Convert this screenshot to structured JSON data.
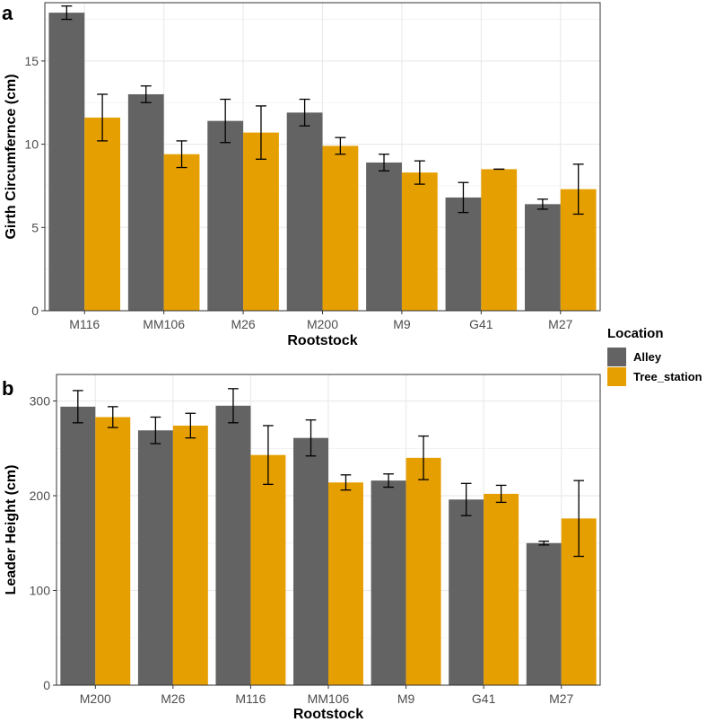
{
  "colors": {
    "alley": "#636363",
    "tree_station": "#E69F00",
    "grid": "#ebebeb",
    "border": "#333333",
    "error_bar": "#000000"
  },
  "legend": {
    "title": "Location",
    "entries": [
      "Alley",
      "Tree_station"
    ]
  },
  "chart_data": [
    {
      "type": "bar",
      "panel": "a",
      "xlabel": "Rootstock",
      "ylabel": "Girth Circumfernce (cm)",
      "ylim": [
        0,
        18.5
      ],
      "yticks": [
        0,
        5,
        10,
        15
      ],
      "categories": [
        "M116",
        "MM106",
        "M26",
        "M200",
        "M9",
        "G41",
        "M27"
      ],
      "series": [
        {
          "name": "Alley",
          "values": [
            17.9,
            13.0,
            11.4,
            11.9,
            8.9,
            6.8,
            6.4
          ],
          "errors": [
            0.4,
            0.5,
            1.3,
            0.8,
            0.5,
            0.9,
            0.3
          ]
        },
        {
          "name": "Tree_station",
          "values": [
            11.6,
            9.4,
            10.7,
            9.9,
            8.3,
            8.5,
            7.3
          ],
          "errors": [
            1.4,
            0.8,
            1.6,
            0.5,
            0.7,
            0.0,
            1.5
          ]
        }
      ]
    },
    {
      "type": "bar",
      "panel": "b",
      "xlabel": "Rootstock",
      "ylabel": "Leader Height (cm)",
      "ylim": [
        0,
        328
      ],
      "yticks": [
        0,
        100,
        200,
        300
      ],
      "categories": [
        "M200",
        "M26",
        "M116",
        "MM106",
        "M9",
        "G41",
        "M27"
      ],
      "series": [
        {
          "name": "Alley",
          "values": [
            294,
            269,
            295,
            261,
            216,
            196,
            150
          ],
          "errors": [
            17,
            14,
            18,
            19,
            7,
            17,
            2
          ]
        },
        {
          "name": "Tree_station",
          "values": [
            283,
            274,
            243,
            214,
            240,
            202,
            176
          ],
          "errors": [
            11,
            13,
            31,
            8,
            23,
            9,
            40
          ]
        }
      ]
    }
  ]
}
